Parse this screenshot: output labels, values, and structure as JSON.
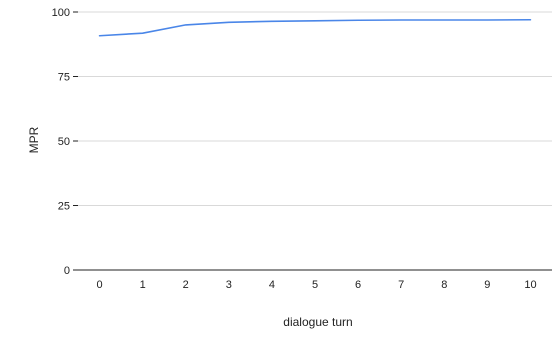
{
  "chart_data": {
    "type": "line",
    "title": "",
    "xlabel": "dialogue turn",
    "ylabel": "MPR",
    "x": [
      0,
      1,
      2,
      3,
      4,
      5,
      6,
      7,
      8,
      9,
      10
    ],
    "series": [
      {
        "values": [
          90.8,
          91.8,
          95.0,
          96.0,
          96.4,
          96.6,
          96.8,
          96.9,
          96.9,
          96.9,
          97.0
        ],
        "color": "#4a86e8"
      }
    ],
    "ylim": [
      0,
      100
    ],
    "yticks": [
      0,
      25,
      50,
      75,
      100
    ],
    "xticks": [
      "0",
      "1",
      "2",
      "3",
      "4",
      "5",
      "6",
      "7",
      "8",
      "9",
      "10"
    ],
    "ytick_labels": [
      "0",
      "25",
      "50",
      "75",
      "100"
    ],
    "grid": true,
    "legend": "none",
    "grid_color": "#d9d9d9",
    "axis_color": "#222222"
  }
}
